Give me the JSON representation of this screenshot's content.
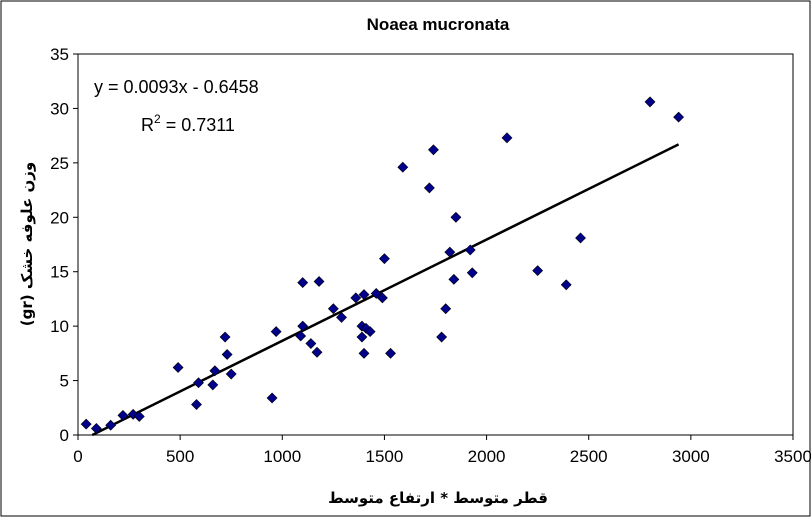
{
  "chart_data": {
    "type": "scatter",
    "title": "Noaea mucronata",
    "xlabel": "قطر متوسط * ارتفاع متوسط",
    "ylabel": "وزن علوفه خشک (gr)",
    "xlim": [
      0,
      3500
    ],
    "ylim": [
      0,
      35
    ],
    "xticks": [
      "0",
      "500",
      "1000",
      "1500",
      "2000",
      "2500",
      "3000",
      "3500"
    ],
    "yticks": [
      "0",
      "5",
      "10",
      "15",
      "20",
      "25",
      "30",
      "35"
    ],
    "grid": false,
    "legend": "none",
    "marker_color": "#00008B",
    "trendline": {
      "slope": 0.0093,
      "intercept": -0.6458,
      "x_range": [
        70,
        2940
      ],
      "equation_text": "y = 0.0093x - 0.6458",
      "r2_prefix": "R",
      "r2_sup": "2",
      "r2_suffix": " = 0.7311"
    },
    "points": [
      [
        40,
        1.0
      ],
      [
        90,
        0.6
      ],
      [
        160,
        0.9
      ],
      [
        220,
        1.8
      ],
      [
        270,
        1.9
      ],
      [
        300,
        1.7
      ],
      [
        490,
        6.2
      ],
      [
        580,
        2.8
      ],
      [
        590,
        4.8
      ],
      [
        660,
        4.6
      ],
      [
        670,
        5.9
      ],
      [
        720,
        9.0
      ],
      [
        730,
        7.4
      ],
      [
        750,
        5.6
      ],
      [
        950,
        3.4
      ],
      [
        970,
        9.5
      ],
      [
        1090,
        9.1
      ],
      [
        1100,
        10.0
      ],
      [
        1100,
        14.0
      ],
      [
        1140,
        8.4
      ],
      [
        1170,
        7.6
      ],
      [
        1180,
        14.1
      ],
      [
        1250,
        11.6
      ],
      [
        1290,
        10.8
      ],
      [
        1360,
        12.6
      ],
      [
        1390,
        10.0
      ],
      [
        1390,
        9.0
      ],
      [
        1400,
        12.9
      ],
      [
        1400,
        7.5
      ],
      [
        1410,
        9.8
      ],
      [
        1430,
        9.5
      ],
      [
        1460,
        13.0
      ],
      [
        1490,
        12.6
      ],
      [
        1500,
        16.2
      ],
      [
        1530,
        7.5
      ],
      [
        1590,
        24.6
      ],
      [
        1720,
        22.7
      ],
      [
        1740,
        26.2
      ],
      [
        1780,
        9.0
      ],
      [
        1800,
        11.6
      ],
      [
        1820,
        16.8
      ],
      [
        1840,
        14.3
      ],
      [
        1850,
        20.0
      ],
      [
        1920,
        17.0
      ],
      [
        1930,
        14.9
      ],
      [
        2100,
        27.3
      ],
      [
        2250,
        15.1
      ],
      [
        2390,
        13.8
      ],
      [
        2460,
        18.1
      ],
      [
        2800,
        30.6
      ],
      [
        2940,
        29.2
      ]
    ]
  }
}
